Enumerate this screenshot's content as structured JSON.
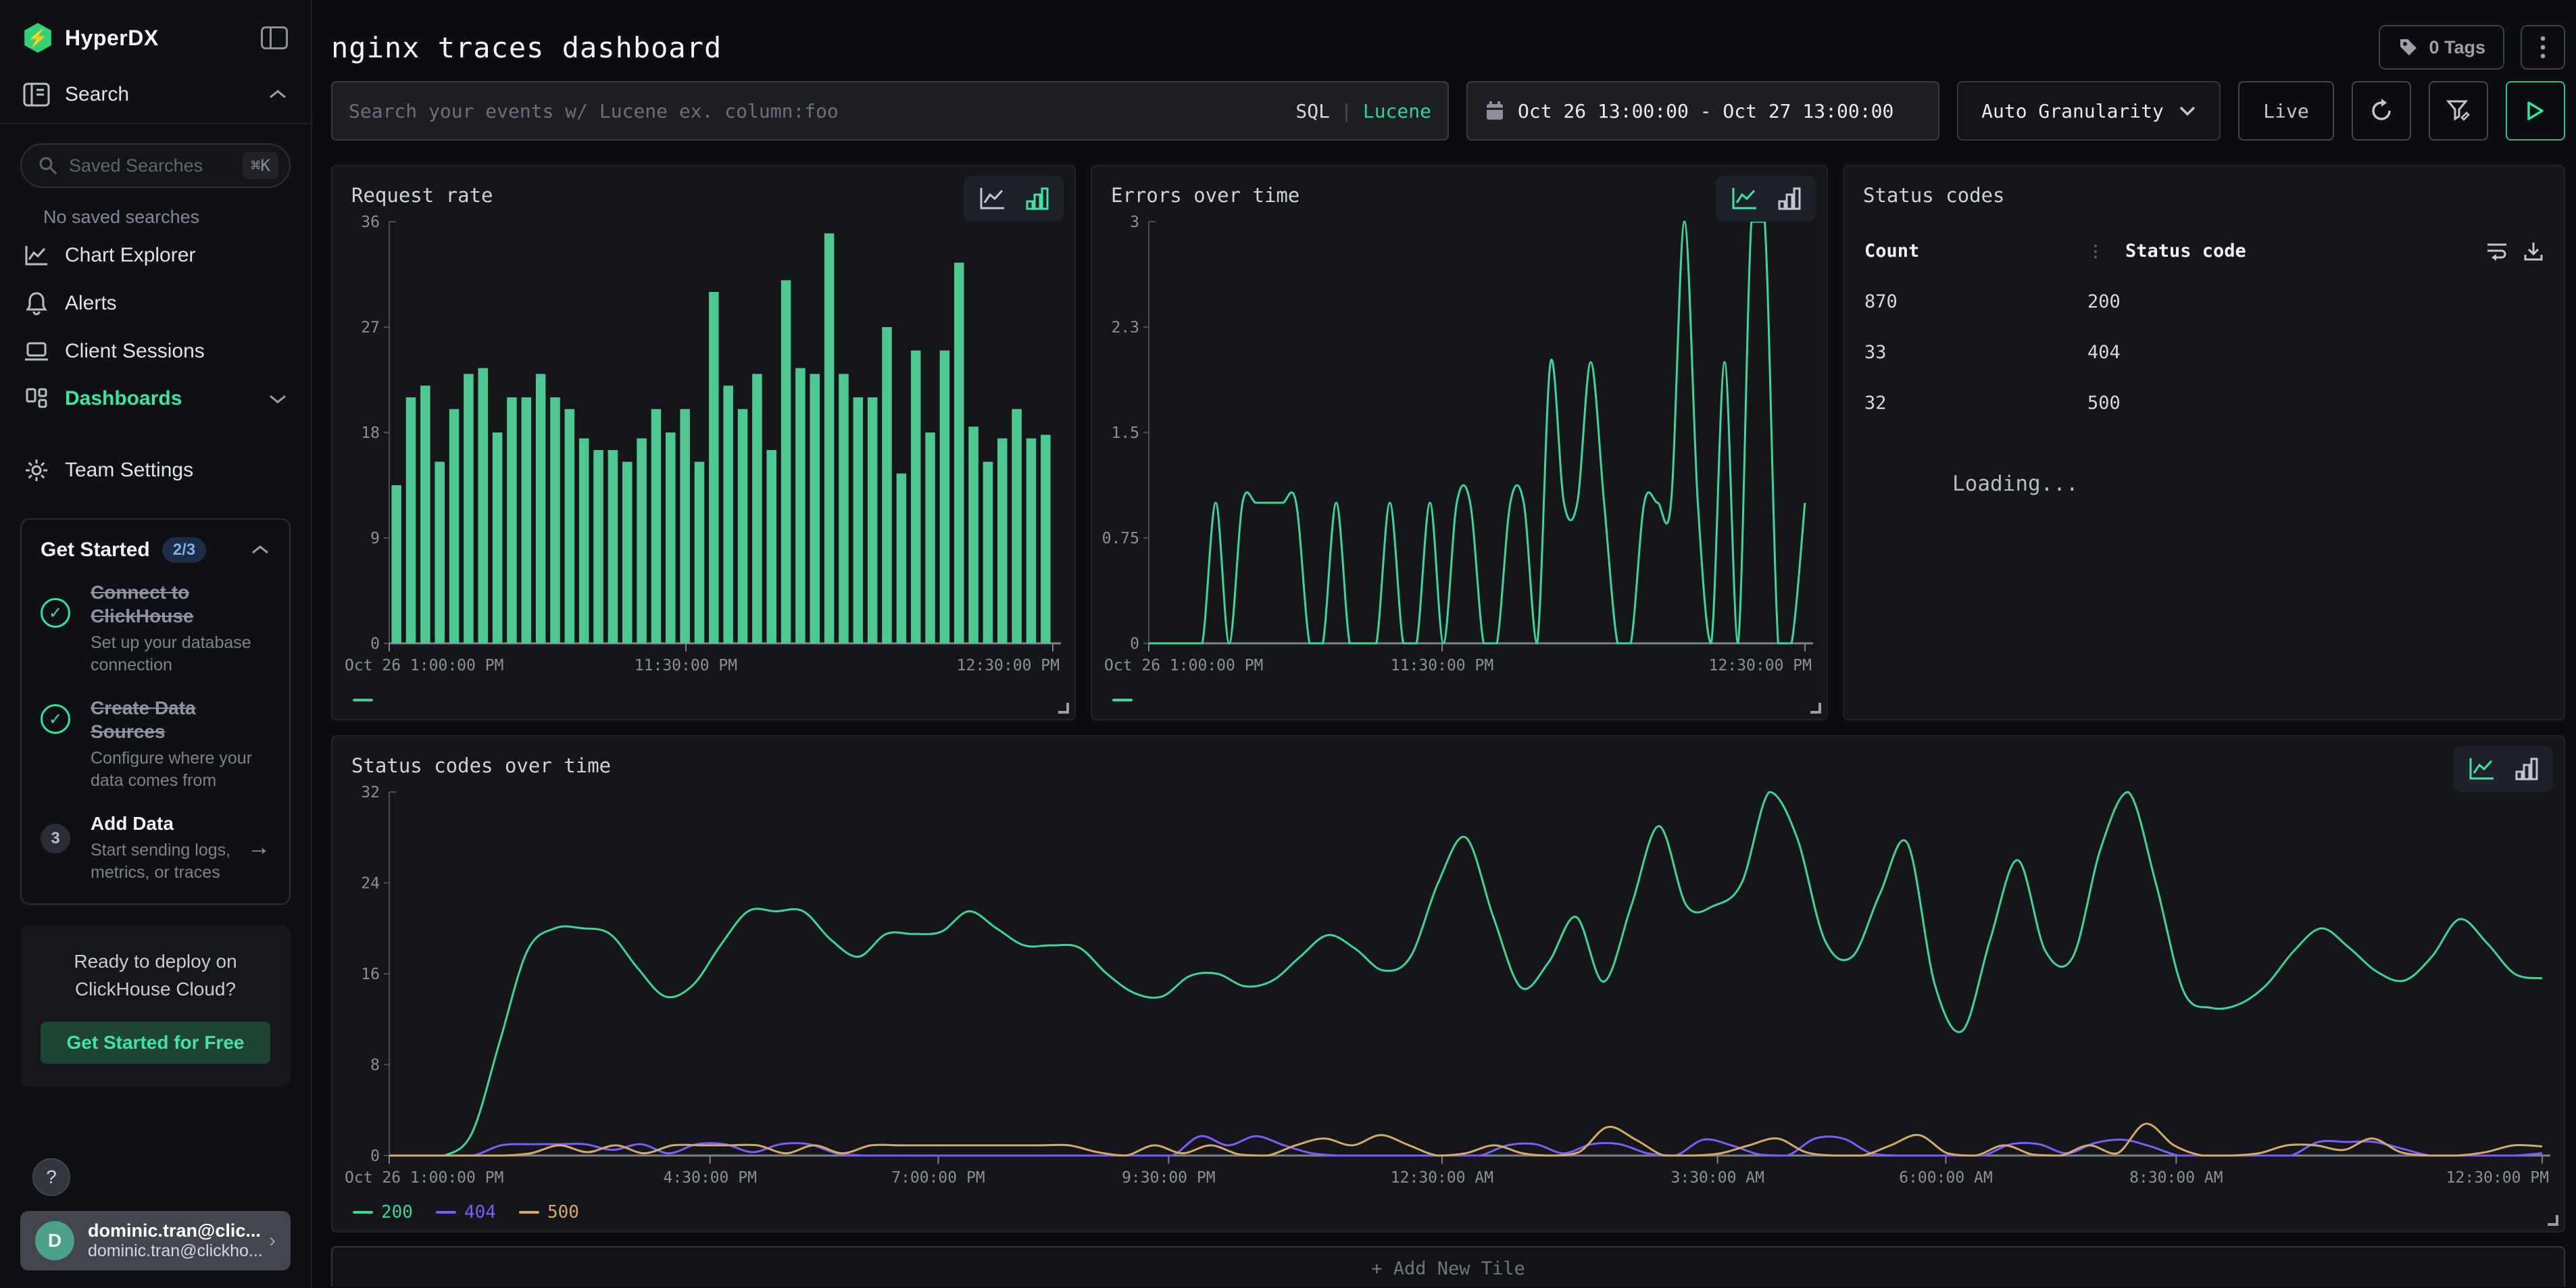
{
  "sidebar": {
    "brand": "HyperDX",
    "search_label": "Search",
    "saved_placeholder": "Saved Searches",
    "saved_shortcut": "⌘K",
    "no_saved": "No saved searches",
    "items": [
      {
        "label": "Chart Explorer"
      },
      {
        "label": "Alerts"
      },
      {
        "label": "Client Sessions"
      },
      {
        "label": "Dashboards"
      },
      {
        "label": "Team Settings"
      }
    ],
    "get_started": {
      "title": "Get Started",
      "badge": "2/3",
      "steps": [
        {
          "title": "Connect to ClickHouse",
          "subtitle": "Set up your database connection",
          "done": true
        },
        {
          "title": "Create Data Sources",
          "subtitle": "Configure where your data comes from",
          "done": true
        },
        {
          "title": "Add Data",
          "subtitle": "Start sending logs, metrics, or traces",
          "done": false,
          "num": "3"
        }
      ]
    },
    "cloud": {
      "line1": "Ready to deploy on",
      "line2": "ClickHouse Cloud?",
      "cta": "Get Started for Free"
    },
    "help": "?",
    "user": {
      "initial": "D",
      "name": "dominic.tran@clic...",
      "email": "dominic.tran@clickho..."
    }
  },
  "header": {
    "title": "nginx traces dashboard",
    "tags_label": "0 Tags"
  },
  "filterbar": {
    "search_placeholder": "Search your events w/ Lucene ex. column:foo",
    "sql": "SQL",
    "divider": "|",
    "lucene": "Lucene",
    "daterange": "Oct 26 13:00:00 - Oct 27 13:00:00",
    "granularity": "Auto Granularity",
    "live": "Live"
  },
  "tiles": {
    "loading": "Loading...",
    "add_new": "+ Add New Tile"
  },
  "status_table": {
    "title": "Status codes",
    "columns": [
      "Count",
      "Status code"
    ],
    "rows": [
      {
        "count": "870",
        "code": "200"
      },
      {
        "count": "33",
        "code": "404"
      },
      {
        "count": "32",
        "code": "500"
      }
    ]
  },
  "chart_data": [
    {
      "key": "request_rate",
      "type": "bar",
      "title": "Request rate",
      "color": "#4ec892",
      "ylim": [
        0,
        36
      ],
      "yticks": [
        "36",
        "27",
        "18",
        "9",
        "0"
      ],
      "xticks": [
        {
          "pos": 0,
          "label": "Oct 26 1:00:00 PM"
        },
        {
          "pos": 0.447,
          "label": "11:30:00 PM"
        },
        {
          "pos": 1,
          "label": "12:30:00 PM"
        }
      ],
      "grid": false,
      "legend_position": "bottom-left",
      "values": [
        13.5,
        21,
        22,
        15.5,
        20,
        23,
        23.5,
        18,
        21,
        21,
        23,
        21,
        20,
        17.5,
        16.5,
        16.5,
        15.5,
        17.5,
        20,
        18,
        20,
        15.5,
        30,
        22,
        20,
        23,
        16.5,
        31,
        23.5,
        23,
        35,
        23,
        21,
        21,
        27,
        14.5,
        25,
        18,
        25,
        32.5,
        18.5,
        15.5,
        17.5,
        20,
        17.5,
        17.8
      ]
    },
    {
      "key": "errors_over_time",
      "type": "line",
      "title": "Errors over time",
      "color": "#3bd79b",
      "ylim": [
        0,
        3
      ],
      "yticks": [
        "3",
        "2.3",
        "1.5",
        "0.75",
        "0"
      ],
      "xticks": [
        {
          "pos": 0,
          "label": "Oct 26 1:00:00 PM"
        },
        {
          "pos": 0.447,
          "label": "11:30:00 PM"
        },
        {
          "pos": 1,
          "label": "12:30:00 PM"
        }
      ],
      "grid": false,
      "legend_position": "bottom-left",
      "values": [
        0,
        0,
        0,
        0,
        0,
        1,
        0,
        1,
        1,
        1,
        1,
        1,
        0,
        0,
        1,
        0,
        0,
        0,
        1,
        0,
        0,
        1,
        0,
        1,
        1,
        0,
        0,
        1,
        1,
        0,
        2,
        1,
        1,
        2,
        1,
        0,
        0,
        1,
        1,
        1,
        3,
        1,
        0,
        2,
        0,
        3,
        3,
        0,
        0,
        1
      ]
    },
    {
      "key": "status_codes_over_time",
      "type": "line",
      "title": "Status codes over time",
      "ylim": [
        0,
        32
      ],
      "yticks": [
        "32",
        "24",
        "16",
        "8",
        "0"
      ],
      "xticks": [
        {
          "pos": 0,
          "label": "Oct 26 1:00:00 PM"
        },
        {
          "pos": 0.149,
          "label": "4:30:00 PM"
        },
        {
          "pos": 0.255,
          "label": "7:00:00 PM"
        },
        {
          "pos": 0.362,
          "label": "9:30:00 PM"
        },
        {
          "pos": 0.489,
          "label": "12:30:00 AM"
        },
        {
          "pos": 0.617,
          "label": "3:30:00 AM"
        },
        {
          "pos": 0.723,
          "label": "6:00:00 AM"
        },
        {
          "pos": 0.83,
          "label": "8:30:00 AM"
        },
        {
          "pos": 1,
          "label": "12:30:00 PM"
        }
      ],
      "grid": false,
      "legend_position": "bottom-left",
      "series": [
        {
          "name": "200",
          "color": "#3ed598",
          "values": [
            0,
            0,
            0,
            2,
            10,
            18,
            20,
            20,
            19.5,
            16.5,
            14,
            15,
            18.5,
            21.5,
            21.5,
            21.5,
            19,
            17.5,
            19.5,
            19.5,
            19.7,
            21.5,
            20,
            18.5,
            18.5,
            18.3,
            16,
            14.3,
            14,
            15.8,
            16,
            14.9,
            15.4,
            17.5,
            19.4,
            18.2,
            16.3,
            17.5,
            24,
            28,
            21,
            14.8,
            17,
            21,
            15.3,
            22,
            29,
            22,
            22,
            24,
            32,
            28,
            19,
            17.5,
            23,
            27.5,
            15,
            11,
            19,
            26,
            18,
            17.5,
            27,
            32,
            24,
            14.5,
            13,
            13.3,
            15,
            18,
            20,
            18.3,
            16.2,
            15.4,
            17.5,
            20.8,
            18.7,
            16,
            15.6
          ]
        },
        {
          "name": "404",
          "color": "#7c5cfc",
          "values": [
            0,
            0,
            0,
            0,
            0.9,
            1,
            1,
            1,
            0.5,
            1,
            0.2,
            1,
            1,
            0.3,
            1,
            1,
            0.2,
            0,
            0,
            0,
            0,
            0,
            0,
            0,
            0,
            0,
            0,
            0,
            0,
            1.7,
            0.9,
            1.7,
            0.9,
            0.2,
            0,
            0,
            0,
            0,
            0,
            0,
            0.9,
            1,
            0.2,
            1,
            1,
            0.2,
            0,
            1.4,
            0.9,
            0.1,
            0,
            1.5,
            1.5,
            0.2,
            0,
            0,
            0,
            0,
            1,
            1,
            0.2,
            1.1,
            1.4,
            0.8,
            0,
            0,
            0,
            0,
            0,
            1.2,
            1.2,
            1.2,
            0.6,
            0,
            0,
            0,
            0,
            0.2
          ]
        },
        {
          "name": "500",
          "color": "#d2ac66",
          "values": [
            0,
            0,
            0,
            0,
            0,
            0.2,
            0.9,
            0.3,
            0.9,
            0.2,
            0.9,
            0.9,
            0.9,
            0.9,
            0.2,
            0.9,
            0.2,
            0.9,
            0.9,
            0.9,
            0.9,
            0.9,
            0.9,
            0.9,
            0.9,
            0.3,
            0,
            0.9,
            0.2,
            0.9,
            0.1,
            0,
            0.9,
            1.5,
            0.9,
            1.8,
            0.9,
            0,
            0.2,
            0.9,
            0.2,
            0,
            0.3,
            2.5,
            1.4,
            0,
            0,
            0.2,
            0.9,
            1.5,
            0.3,
            0,
            0,
            0.9,
            1.8,
            0.2,
            0,
            0.9,
            0.1,
            0,
            0.9,
            0.2,
            2.8,
            0.9,
            0,
            0,
            0.2,
            0.9,
            0.9,
            0.5,
            1.5,
            0.3,
            0,
            0,
            0.3,
            0.9,
            0.8
          ]
        }
      ]
    }
  ]
}
